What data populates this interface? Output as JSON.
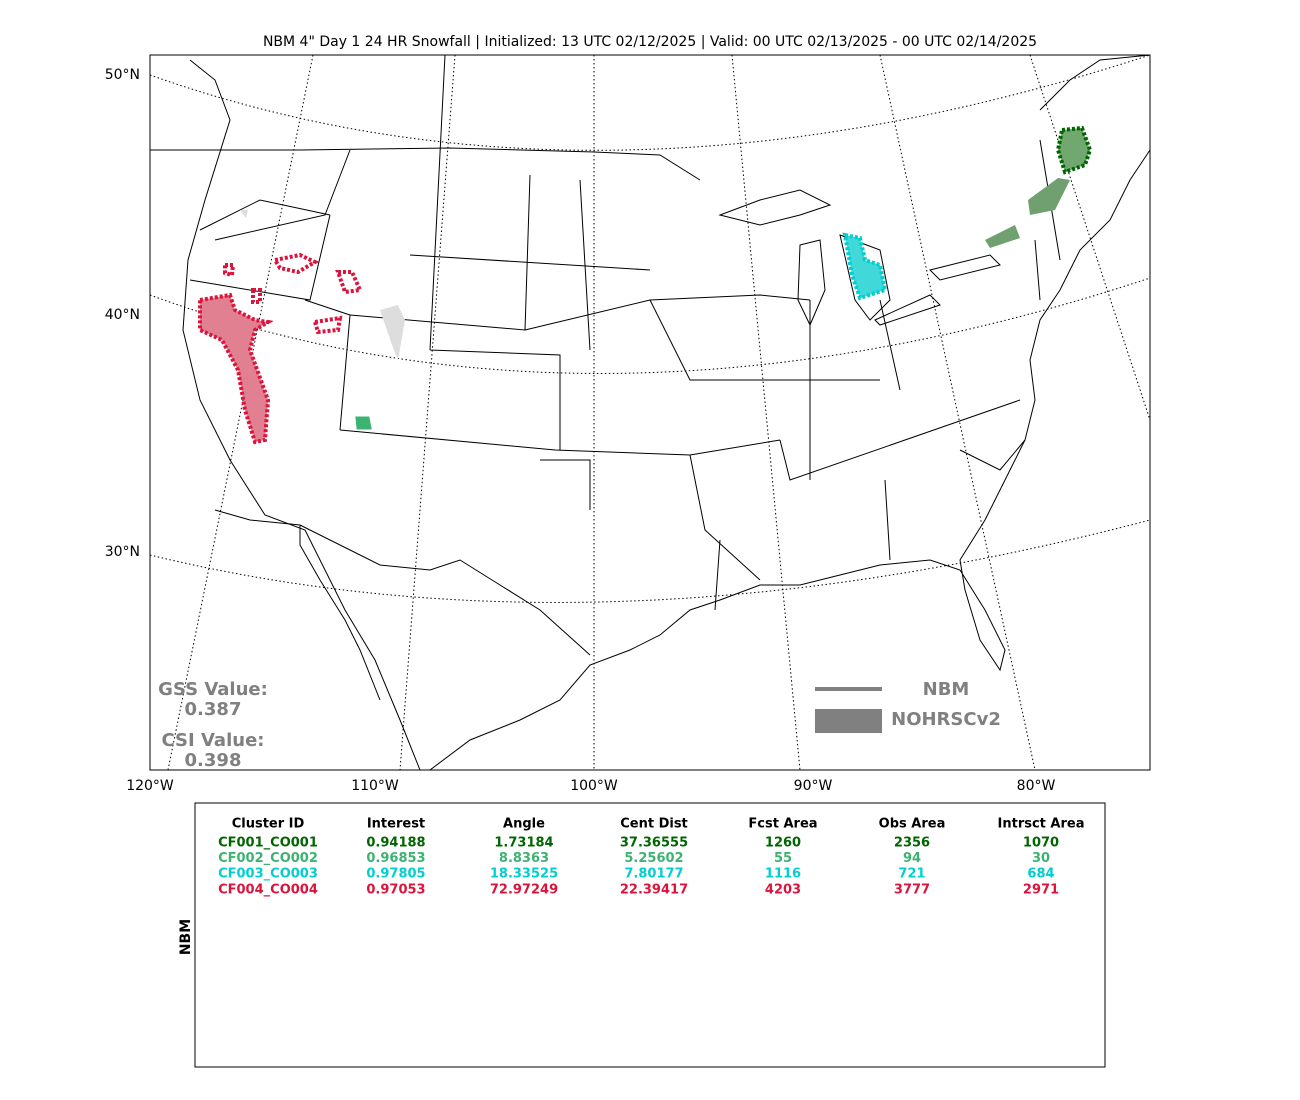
{
  "map": {
    "title": "NBM 4\" Day 1 24 HR Snowfall | Initialized: 13 UTC 02/12/2025 | Valid: 00 UTC 02/13/2025 - 00 UTC 02/14/2025",
    "lat_labels": [
      "50°N",
      "40°N",
      "30°N"
    ],
    "lon_labels": [
      "120°W",
      "110°W",
      "100°W",
      "90°W",
      "80°W"
    ],
    "gss_label": "GSS Value:",
    "gss_value": "0.387",
    "csi_label": "CSI Value:",
    "csi_value": "0.398",
    "legend": [
      "NBM",
      "NOHRSCv2"
    ]
  },
  "table": {
    "side_label": "NBM",
    "headers": [
      "Cluster ID",
      "Interest",
      "Angle",
      "Cent Dist",
      "Fcst Area",
      "Obs Area",
      "Intrsct Area"
    ],
    "rows": [
      {
        "color": "#006400",
        "cells": [
          "CF001_CO001",
          "0.94188",
          "1.73184",
          "37.36555",
          "1260",
          "2356",
          "1070"
        ]
      },
      {
        "color": "#3cb371",
        "cells": [
          "CF002_CO002",
          "0.96853",
          "8.8363",
          "5.25602",
          "55",
          "94",
          "30"
        ]
      },
      {
        "color": "#00ced1",
        "cells": [
          "CF003_CO003",
          "0.97805",
          "18.33525",
          "7.80177",
          "1116",
          "721",
          "684"
        ]
      },
      {
        "color": "#dc143c",
        "cells": [
          "CF004_CO004",
          "0.97053",
          "72.97249",
          "22.39417",
          "4203",
          "3777",
          "2971"
        ]
      }
    ]
  }
}
